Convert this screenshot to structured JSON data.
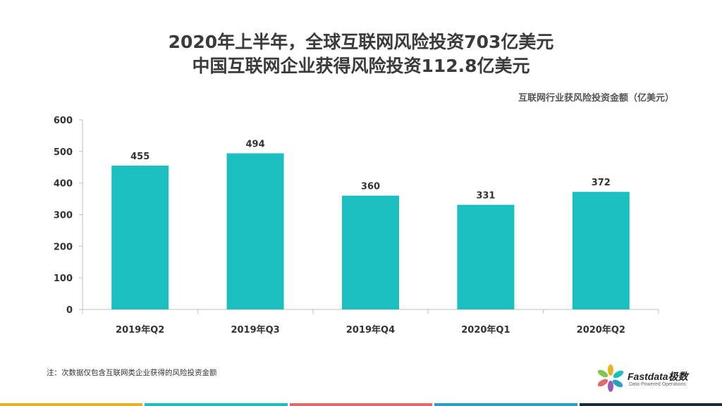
{
  "title_line1": "2020年上半年，全球互联网风险投资703亿美元",
  "title_line2": "中国互联网企业获得风险投资112.8亿美元",
  "legend_label": "互联网行业获风险投资金额（亿美元）",
  "note": "注：次数据仅包含互联网类企业获得的风险投资金额",
  "brand": {
    "name": "Fastdata极数",
    "tagline": "Data-Powered Operations"
  },
  "colors": {
    "bar": "#1bbfbf",
    "axis": "#bfbfbf",
    "stripes": [
      "#e6b422",
      "#1bbfbf",
      "#e06a6a",
      "#2a9fc4",
      "#1e2a3a"
    ]
  },
  "chart_data": {
    "type": "bar",
    "categories": [
      "2019年Q2",
      "2019年Q3",
      "2019年Q4",
      "2020年Q1",
      "2020年Q2"
    ],
    "values": [
      455,
      494,
      360,
      331,
      372
    ],
    "data_labels": [
      "455",
      "494",
      "360",
      "331",
      "372"
    ],
    "yticks": [
      "0",
      "100",
      "200",
      "300",
      "400",
      "500",
      "600"
    ],
    "ylim": [
      0,
      600
    ],
    "grid": false,
    "legend_position": "top-right"
  }
}
